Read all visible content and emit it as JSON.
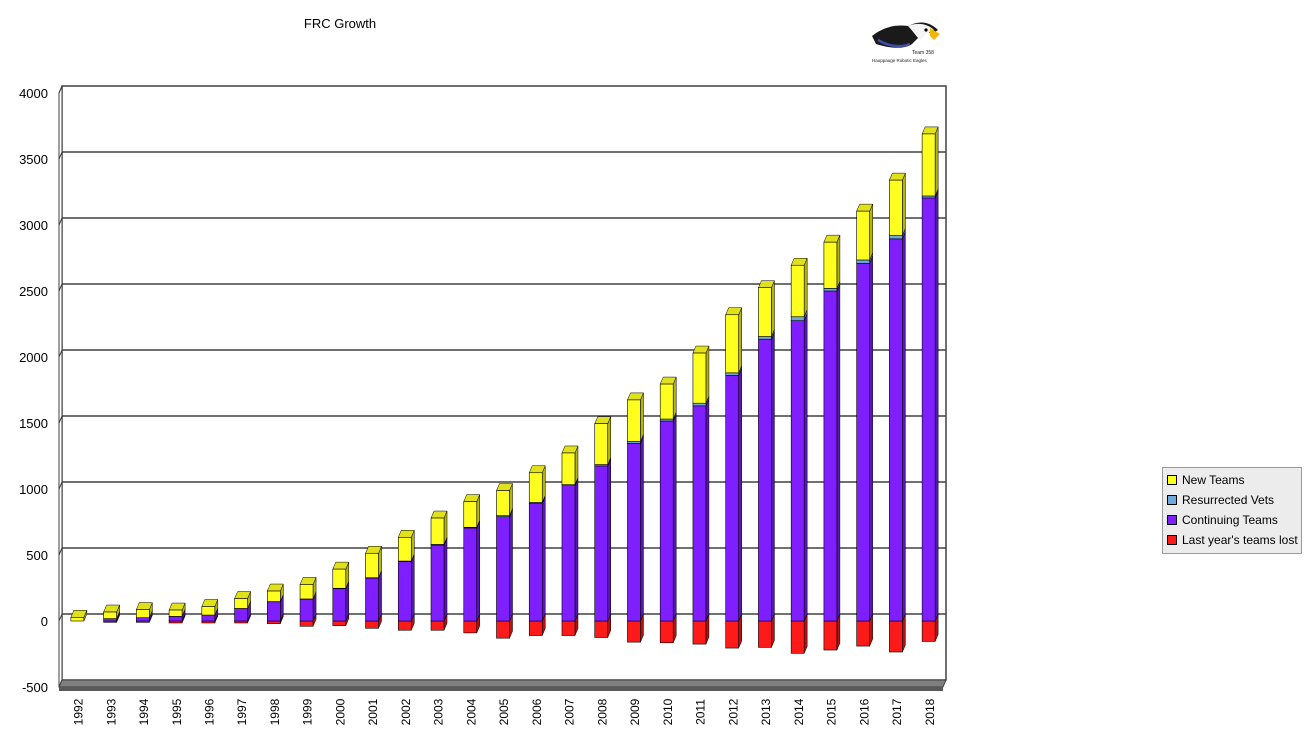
{
  "chart_data": {
    "type": "bar",
    "stacked": true,
    "three_d": true,
    "title": "FRC Growth",
    "xlabel": "",
    "ylabel": "",
    "ylim": [
      -500,
      4000
    ],
    "yticks": [
      -500,
      0,
      500,
      1000,
      1500,
      2000,
      2500,
      3000,
      3500,
      4000
    ],
    "grid": true,
    "legend_position": "right",
    "categories": [
      "1992",
      "1993",
      "1994",
      "1995",
      "1996",
      "1997",
      "1998",
      "1999",
      "2000",
      "2001",
      "2002",
      "2003",
      "2004",
      "2005",
      "2006",
      "2007",
      "2008",
      "2009",
      "2010",
      "2011",
      "2012",
      "2013",
      "2014",
      "2015",
      "2016",
      "2017",
      "2018"
    ],
    "series": [
      {
        "name": "Last year's teams lost",
        "color": "#ff1a1a",
        "values": [
          0,
          -10,
          -10,
          -15,
          -15,
          -15,
          -20,
          -40,
          -35,
          -55,
          -70,
          -70,
          -90,
          -130,
          -110,
          -110,
          -125,
          -160,
          -165,
          -175,
          -205,
          -200,
          -245,
          -220,
          -190,
          -235,
          -155
        ]
      },
      {
        "name": "Continuing Teams",
        "color": "#7f1fff",
        "values": [
          0,
          18,
          25,
          35,
          45,
          95,
          145,
          165,
          245,
          325,
          450,
          575,
          705,
          790,
          890,
          1025,
          1175,
          1345,
          1515,
          1630,
          1860,
          2135,
          2275,
          2500,
          2710,
          2895,
          3205
        ]
      },
      {
        "name": "Resurrected Vets",
        "color": "#6fa8dc",
        "values": [
          0,
          0,
          0,
          0,
          0,
          0,
          2,
          2,
          3,
          3,
          4,
          5,
          5,
          8,
          8,
          8,
          10,
          15,
          15,
          20,
          20,
          20,
          30,
          20,
          25,
          25,
          15
        ]
      },
      {
        "name": "New Teams",
        "color": "#ffff1f",
        "values": [
          28,
          50,
          62,
          48,
          65,
          75,
          80,
          110,
          145,
          185,
          180,
          200,
          195,
          190,
          225,
          240,
          310,
          315,
          265,
          380,
          440,
          370,
          390,
          350,
          370,
          420,
          470
        ]
      }
    ]
  },
  "legend_order": [
    3,
    2,
    1,
    0
  ]
}
